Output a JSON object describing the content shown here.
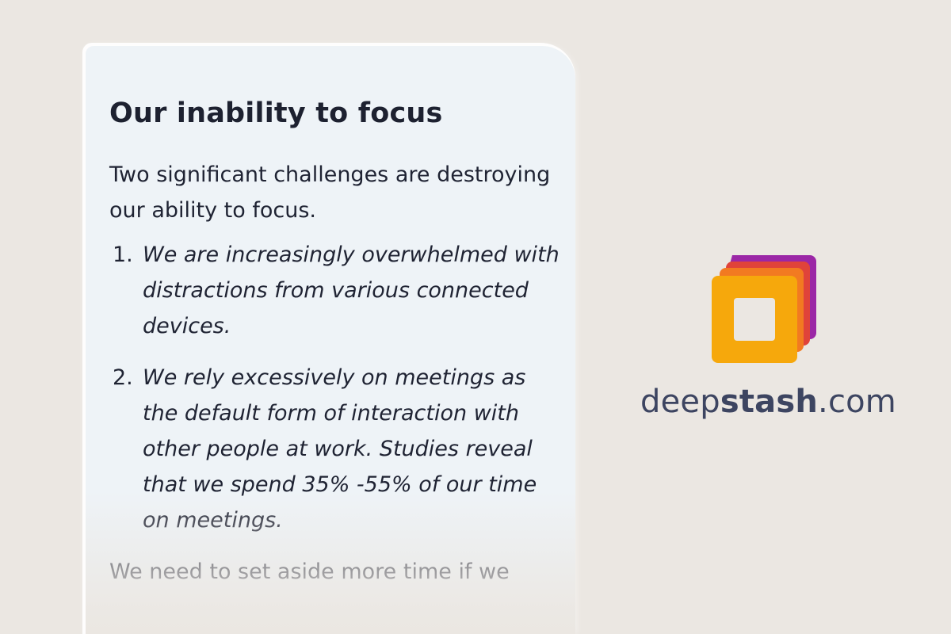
{
  "card": {
    "title": "Our inability to focus",
    "intro": "Two significant challenges are destroying our ability to focus.",
    "items": [
      {
        "number": "1.",
        "text": "We are increasingly overwhelmed with distractions from various connected devices."
      },
      {
        "number": "2.",
        "text": "We rely excessively on meetings as the default form of interaction with other people at work. Studies reveal that we spend 35% -55% of our time on meetings."
      }
    ],
    "outro": "We need to set aside more time if we"
  },
  "brand": {
    "prefix": "deep",
    "emphasis": "stash",
    "suffix": ".com",
    "logo_icon": "deepstash-logo-icon",
    "logo_colors": [
      "#9b27a6",
      "#e0433a",
      "#f27a21",
      "#f6a80c"
    ]
  }
}
